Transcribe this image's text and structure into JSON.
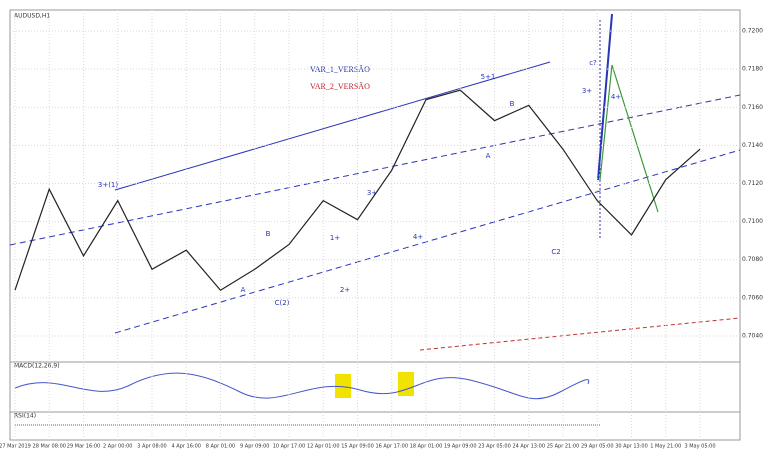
{
  "chart_data": {
    "type": "line",
    "title": "AUDUSD,H1",
    "legend_texts": [
      "VAR_1_VERSÃO",
      "VAR_2_VERSÃO"
    ],
    "indicators": [
      "MACD(12,26,9)",
      "RSI(14)"
    ],
    "categories": [
      "27 Mar 2019",
      "28 Mar 08:00",
      "29 Mar 16:00",
      "2 Apr 00:00",
      "3 Apr 08:00",
      "4 Apr 16:00",
      "8 Apr 01:00",
      "9 Apr 09:00",
      "10 Apr 17:00",
      "12 Apr 01:00",
      "15 Apr 09:00",
      "16 Apr 17:00",
      "18 Apr 01:00",
      "19 Apr 09:00",
      "23 Apr 05:00",
      "24 Apr 13:00",
      "25 Apr 21:00",
      "29 Apr 05:00",
      "30 Apr 13:00",
      "1 May 21:00",
      "3 May 05:00"
    ],
    "series": [
      {
        "name": "AUDUSD",
        "color": "#222222",
        "values": [
          0.7064,
          0.7117,
          0.7082,
          0.7111,
          0.7075,
          0.7085,
          0.7064,
          0.7075,
          0.7088,
          0.7111,
          0.7101,
          0.7127,
          0.7164,
          0.7169,
          0.7153,
          0.7161,
          0.7138,
          0.7111,
          0.7093,
          0.7122,
          0.7138
        ]
      }
    ],
    "ylim": [
      0.703,
      0.721
    ],
    "yticks": [
      {
        "value": 0.704,
        "label": "0.7040"
      },
      {
        "value": 0.706,
        "label": "0.7060"
      },
      {
        "value": 0.708,
        "label": "0.7080"
      },
      {
        "value": 0.71,
        "label": "0.7100"
      },
      {
        "value": 0.712,
        "label": "0.7120"
      },
      {
        "value": 0.714,
        "label": "0.7140"
      },
      {
        "value": 0.716,
        "label": "0.7160"
      },
      {
        "value": 0.718,
        "label": "0.7180"
      },
      {
        "value": 0.72,
        "label": "0.7200"
      }
    ],
    "grid": true,
    "annotations": [
      "3+(1)",
      "B",
      "A",
      "C(2)",
      "1+",
      "2+",
      "3+",
      "4+",
      "5+1",
      "B",
      "A",
      "c?",
      "C2",
      "3+",
      "4+"
    ]
  }
}
